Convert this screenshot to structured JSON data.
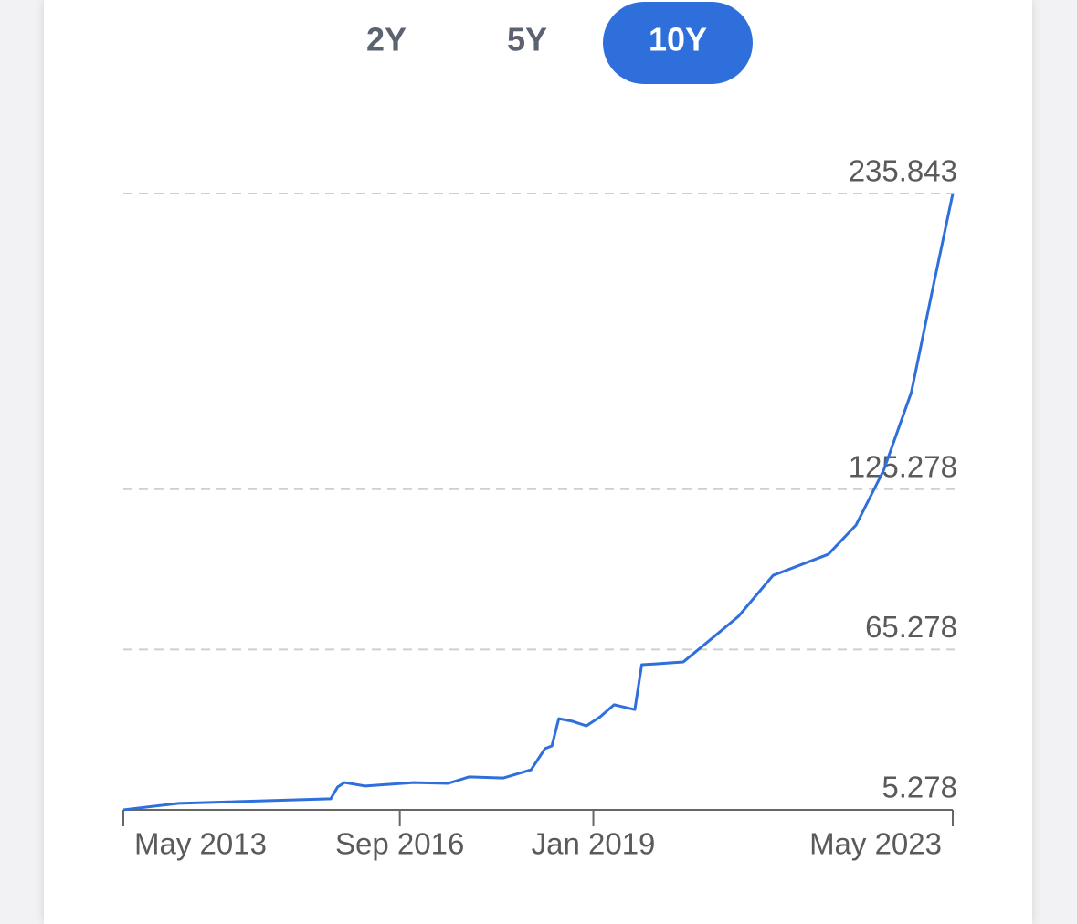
{
  "chart_data": {
    "type": "line",
    "range_options": [
      "2Y",
      "5Y",
      "10Y"
    ],
    "selected_range": "10Y",
    "color": "#2f6fdc",
    "grid": true,
    "x": [
      "2013-05",
      "2014-01",
      "2015-11",
      "2015-12",
      "2016-01",
      "2016-04",
      "2016-11",
      "2017-04",
      "2017-07",
      "2017-12",
      "2018-04",
      "2018-06",
      "2018-07",
      "2018-08",
      "2018-10",
      "2018-12",
      "2019-02",
      "2019-04",
      "2019-07",
      "2019-08",
      "2019-10",
      "2020-02",
      "2020-06",
      "2020-10",
      "2021-03",
      "2021-11",
      "2022-03",
      "2022-07",
      "2022-11",
      "2023-02",
      "2023-05"
    ],
    "series": [
      {
        "name": "10Y",
        "values": [
          5.3,
          7.7,
          9.4,
          13.8,
          15.5,
          14.2,
          15.5,
          15.2,
          17.6,
          17.2,
          20.3,
          28.2,
          29.2,
          39.4,
          38.4,
          36.7,
          40.1,
          44.6,
          42.8,
          59.6,
          59.9,
          60.6,
          69.1,
          77.7,
          93.0,
          100.9,
          111.8,
          132.3,
          161.4,
          199.0,
          235.8
        ]
      }
    ],
    "xlim": [
      "2013-05",
      "2023-05"
    ],
    "xticks": [
      {
        "value": "2013-05",
        "label": "May 2013"
      },
      {
        "value": "2016-09",
        "label": "Sep 2016"
      },
      {
        "value": "2019-01",
        "label": "Jan 2019"
      },
      {
        "value": "2023-05",
        "label": "May 2023"
      }
    ],
    "ylim": [
      5.278,
      235.843
    ],
    "yticks": [
      5.278,
      65.278,
      125.278,
      235.843
    ]
  }
}
